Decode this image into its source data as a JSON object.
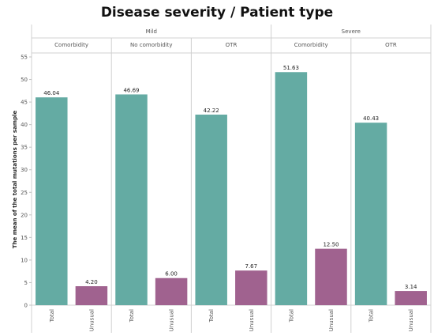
{
  "chart_data": {
    "type": "bar",
    "title": "Disease severity / Patient type",
    "ylabel": "The mean of the total mutations per sample",
    "xlabel": "",
    "ylim": [
      0,
      55
    ],
    "yticks": [
      0,
      5,
      10,
      15,
      20,
      25,
      30,
      35,
      40,
      45,
      50,
      55
    ],
    "grid": false,
    "colors": {
      "Total": "#64ABA3",
      "Unusual": "#A0628F"
    },
    "categories": [
      "Total",
      "Unusual"
    ],
    "groups": [
      {
        "name": "Mild",
        "panels": [
          {
            "name": "Comorbidity",
            "values": [
              46.04,
              4.2
            ],
            "labels": [
              "46.04",
              "4.20"
            ]
          },
          {
            "name": "No comorbidity",
            "values": [
              46.69,
              6.0
            ],
            "labels": [
              "46.69",
              "6.00"
            ]
          },
          {
            "name": "OTR",
            "values": [
              42.22,
              7.67
            ],
            "labels": [
              "42.22",
              "7.67"
            ]
          }
        ]
      },
      {
        "name": "Severe",
        "panels": [
          {
            "name": "Comorbidity",
            "values": [
              51.63,
              12.5
            ],
            "labels": [
              "51.63",
              "12.50"
            ]
          },
          {
            "name": "OTR",
            "values": [
              40.43,
              3.14
            ],
            "labels": [
              "40.43",
              "3.14"
            ]
          }
        ]
      }
    ]
  }
}
